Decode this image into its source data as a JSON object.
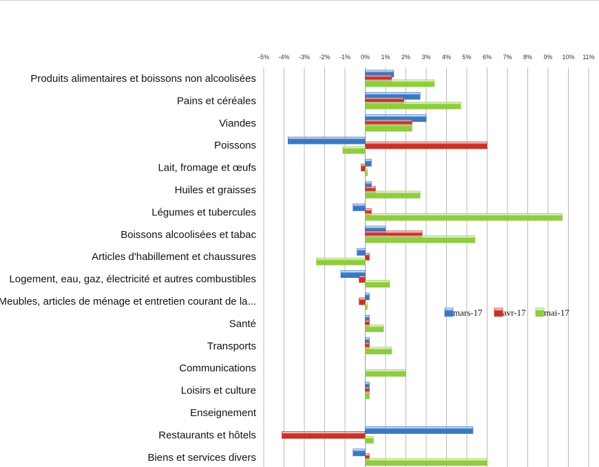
{
  "chart_data": {
    "type": "bar",
    "orientation": "horizontal",
    "categories": [
      "Produits alimentaires et boissons non alcoolisées",
      "Pains et céréales",
      "Viandes",
      "Poissons",
      "Lait, fromage et œufs",
      "Huiles et graisses",
      "Légumes et tubercules",
      "Boissons alcoolisées et tabac",
      "Articles d'habillement et chaussures",
      "Logement, eau, gaz, électricité et autres combustibles",
      "Meubles, articles de ménage et entretien courant de la...",
      "Santé",
      "Transports",
      "Communications",
      "Loisirs et culture",
      "Enseignement",
      "Restaurants et hôtels",
      "Biens et services divers"
    ],
    "series": [
      {
        "name": "mars-17",
        "color": "#3b78c4",
        "values": [
          1.4,
          2.7,
          3.0,
          -3.8,
          0.3,
          0.3,
          -0.6,
          1.0,
          -0.4,
          -1.2,
          0.2,
          0.2,
          0.2,
          0.0,
          0.2,
          0.0,
          5.3,
          -0.6
        ]
      },
      {
        "name": "avr-17",
        "color": "#c8322a",
        "values": [
          1.3,
          1.9,
          2.3,
          6.0,
          -0.2,
          0.5,
          0.3,
          2.8,
          0.2,
          -0.3,
          -0.3,
          0.2,
          0.2,
          0.0,
          0.2,
          0.0,
          -4.1,
          0.2
        ]
      },
      {
        "name": "mai-17",
        "color": "#8fcc3e",
        "values": [
          3.4,
          4.7,
          2.3,
          -1.1,
          0.1,
          2.7,
          9.7,
          5.4,
          -2.4,
          1.2,
          0.1,
          0.9,
          1.3,
          2.0,
          0.2,
          0.0,
          0.4,
          6.0
        ]
      }
    ],
    "xlim": [
      -5,
      11
    ],
    "xticks": [
      "-5%",
      "-4%",
      "-3%",
      "-2%",
      "-1%",
      "0%",
      "1%",
      "2%",
      "3%",
      "4%",
      "5%",
      "6%",
      "7%",
      "8%",
      "9%",
      "10%",
      "11%"
    ],
    "grid": true,
    "legend_position": "right"
  }
}
